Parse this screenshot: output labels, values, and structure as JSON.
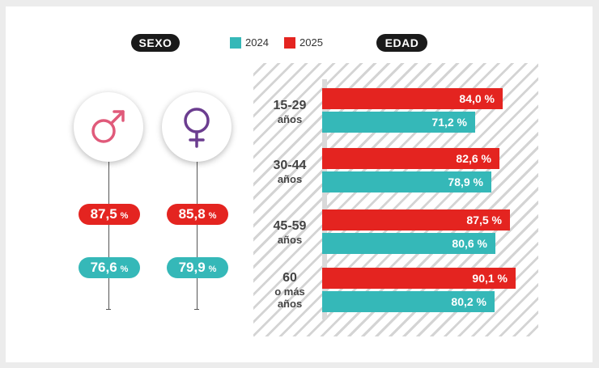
{
  "colors": {
    "y2024": "#35b8b8",
    "y2025": "#e42420",
    "male": "#e05a7a",
    "female": "#6b3d8f"
  },
  "headers": {
    "sexo": "SEXO",
    "edad": "EDAD"
  },
  "legend": [
    {
      "label": "2024",
      "color": "#35b8b8"
    },
    {
      "label": "2025",
      "color": "#e42420"
    }
  ],
  "icons": {
    "male": "male-symbol-icon",
    "female": "female-symbol-icon"
  },
  "chart_data": [
    {
      "type": "table",
      "categories": [
        "male",
        "female"
      ],
      "series": [
        {
          "name": "2025",
          "values": [
            87.5,
            85.8
          ],
          "labels": [
            "87,5",
            "85,8"
          ]
        },
        {
          "name": "2024",
          "values": [
            76.6,
            79.9
          ],
          "labels": [
            "76,6",
            "79,9"
          ]
        }
      ],
      "unit": "%"
    },
    {
      "type": "bar",
      "categories": [
        {
          "line1": "15-29",
          "line2": "años"
        },
        {
          "line1": "30-44",
          "line2": "años"
        },
        {
          "line1": "45-59",
          "line2": "años"
        },
        {
          "line1": "60",
          "line2": "o más",
          "line3": "años"
        }
      ],
      "series": [
        {
          "name": "2025",
          "values": [
            84.0,
            82.6,
            87.5,
            90.1
          ],
          "labels": [
            "84,0 %",
            "82,6 %",
            "87,5 %",
            "90,1 %"
          ]
        },
        {
          "name": "2024",
          "values": [
            71.2,
            78.9,
            80.6,
            80.2
          ],
          "labels": [
            "71,2 %",
            "78,9 %",
            "80,6 %",
            "80,2 %"
          ]
        }
      ]
    }
  ]
}
